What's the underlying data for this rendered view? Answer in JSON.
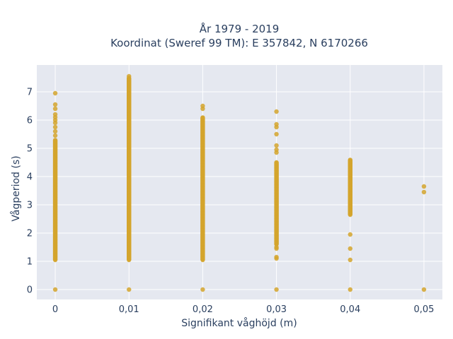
{
  "chart_data": {
    "type": "scatter",
    "title": [
      "År 1979 - 2019",
      "Koordinat (Sweref 99 TM): E 357842, N 6170266"
    ],
    "xlabel": "Signifikant våghöjd (m)",
    "ylabel": "Vågperiod (s)",
    "xlim": [
      -0.0025,
      0.0525
    ],
    "ylim": [
      -0.35,
      7.95
    ],
    "x_ticks": [
      0,
      0.01,
      0.02,
      0.03,
      0.04,
      0.05
    ],
    "x_tick_labels": [
      "0",
      "0,01",
      "0,02",
      "0,03",
      "0,04",
      "0,05"
    ],
    "y_ticks": [
      0,
      1,
      2,
      3,
      4,
      5,
      6,
      7
    ],
    "y_tick_labels": [
      "0",
      "1",
      "2",
      "3",
      "4",
      "5",
      "6",
      "7"
    ],
    "grid": true,
    "legend": false,
    "colors": {
      "marker": "#d4a52d",
      "plot_bg": "#e5e8f0",
      "grid": "#ffffff",
      "text": "#2a3f5f"
    },
    "series": [
      {
        "columns": [
          {
            "x": 0.0,
            "continuous": [
              1.05,
              5.3
            ],
            "extra": [
              5.45,
              5.6,
              5.75,
              5.9,
              6.0,
              6.1,
              6.2,
              6.4,
              6.55,
              6.95
            ],
            "zero": true
          },
          {
            "x": 0.01,
            "continuous": [
              1.05,
              7.5
            ],
            "extra": [
              7.55
            ],
            "zero": true
          },
          {
            "x": 0.02,
            "continuous": [
              1.05,
              6.1
            ],
            "extra": [
              6.4,
              6.5
            ],
            "zero": true
          },
          {
            "x": 0.03,
            "continuous": [
              1.6,
              4.5
            ],
            "extra": [
              1.1,
              1.15,
              1.45,
              1.5,
              4.85,
              4.95,
              5.1,
              5.5,
              5.75,
              5.85,
              6.3
            ],
            "zero": true
          },
          {
            "x": 0.04,
            "continuous": [
              2.65,
              4.6
            ],
            "extra": [
              1.05,
              1.45,
              1.95
            ],
            "zero": true
          },
          {
            "x": 0.05,
            "continuous": null,
            "extra": [
              3.45,
              3.65
            ],
            "zero": true
          }
        ]
      }
    ]
  }
}
